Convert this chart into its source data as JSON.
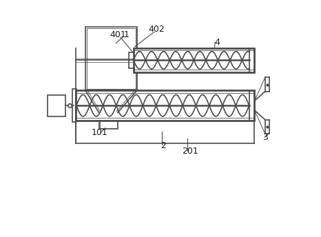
{
  "bg_color": "#ffffff",
  "line_color": "#4a4a4a",
  "lw": 1.2,
  "tlw": 2.0,
  "fs": 9,
  "fig_width": 4.66,
  "fig_height": 3.44
}
